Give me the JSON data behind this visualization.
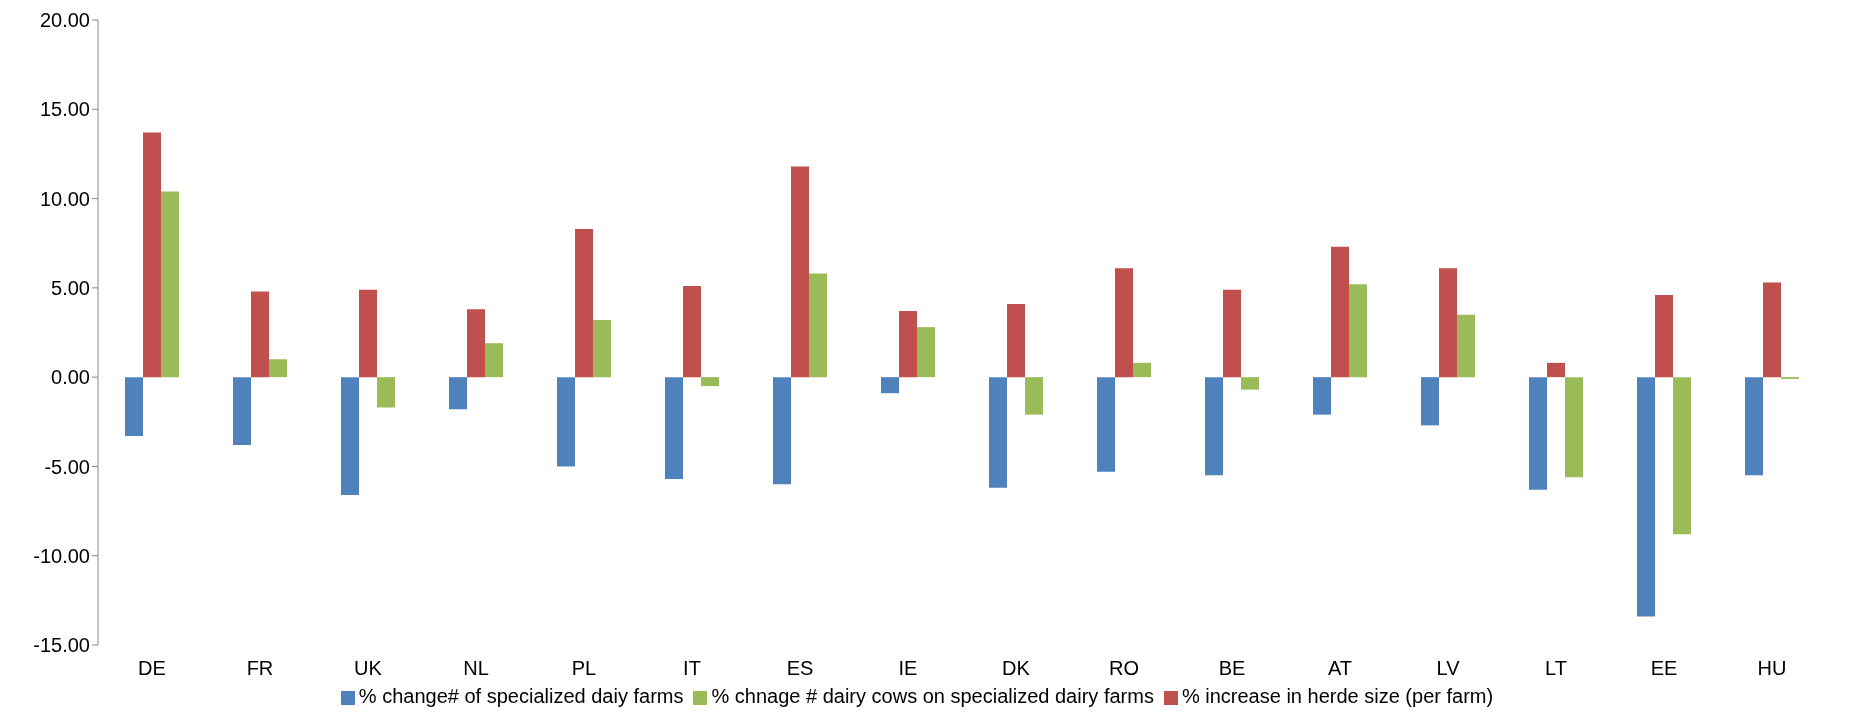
{
  "chart_data": {
    "type": "bar",
    "categories": [
      "DE",
      "FR",
      "UK",
      "NL",
      "PL",
      "IT",
      "ES",
      "IE",
      "DK",
      "RO",
      "BE",
      "AT",
      "LV",
      "LT",
      "EE",
      "HU"
    ],
    "series": [
      {
        "name": "% change# of specialized daiy farms",
        "color": "#4f81bd",
        "values": [
          -3.3,
          -3.8,
          -6.6,
          -1.8,
          -5.0,
          -5.7,
          -6.0,
          -0.9,
          -6.2,
          -5.3,
          -5.5,
          -2.1,
          -2.7,
          -6.3,
          -13.4,
          -5.5
        ]
      },
      {
        "name": "% increase in herde size (per farm)",
        "color": "#c0504d",
        "values": [
          13.7,
          4.8,
          4.9,
          3.8,
          8.3,
          5.1,
          11.8,
          3.7,
          4.1,
          6.1,
          4.9,
          7.3,
          6.1,
          0.8,
          4.6,
          5.3
        ]
      },
      {
        "name": "% chnage # dairy cows on specialized dairy farms",
        "color": "#9bbb59",
        "values": [
          10.4,
          1.0,
          -1.7,
          1.9,
          3.2,
          -0.5,
          5.8,
          2.8,
          -2.1,
          0.8,
          -0.7,
          5.2,
          3.5,
          -5.6,
          -8.8,
          -0.1
        ]
      }
    ],
    "ylim": [
      -15,
      20
    ],
    "yticks": [
      {
        "value": -15,
        "label": "-15.00"
      },
      {
        "value": -10,
        "label": "-10.00"
      },
      {
        "value": -5,
        "label": "-5.00"
      },
      {
        "value": 0,
        "label": "0.00"
      },
      {
        "value": 5,
        "label": "5.00"
      },
      {
        "value": 10,
        "label": "10.00"
      },
      {
        "value": 15,
        "label": "15.00"
      },
      {
        "value": 20,
        "label": "20.00"
      }
    ],
    "legend": "bottom"
  }
}
